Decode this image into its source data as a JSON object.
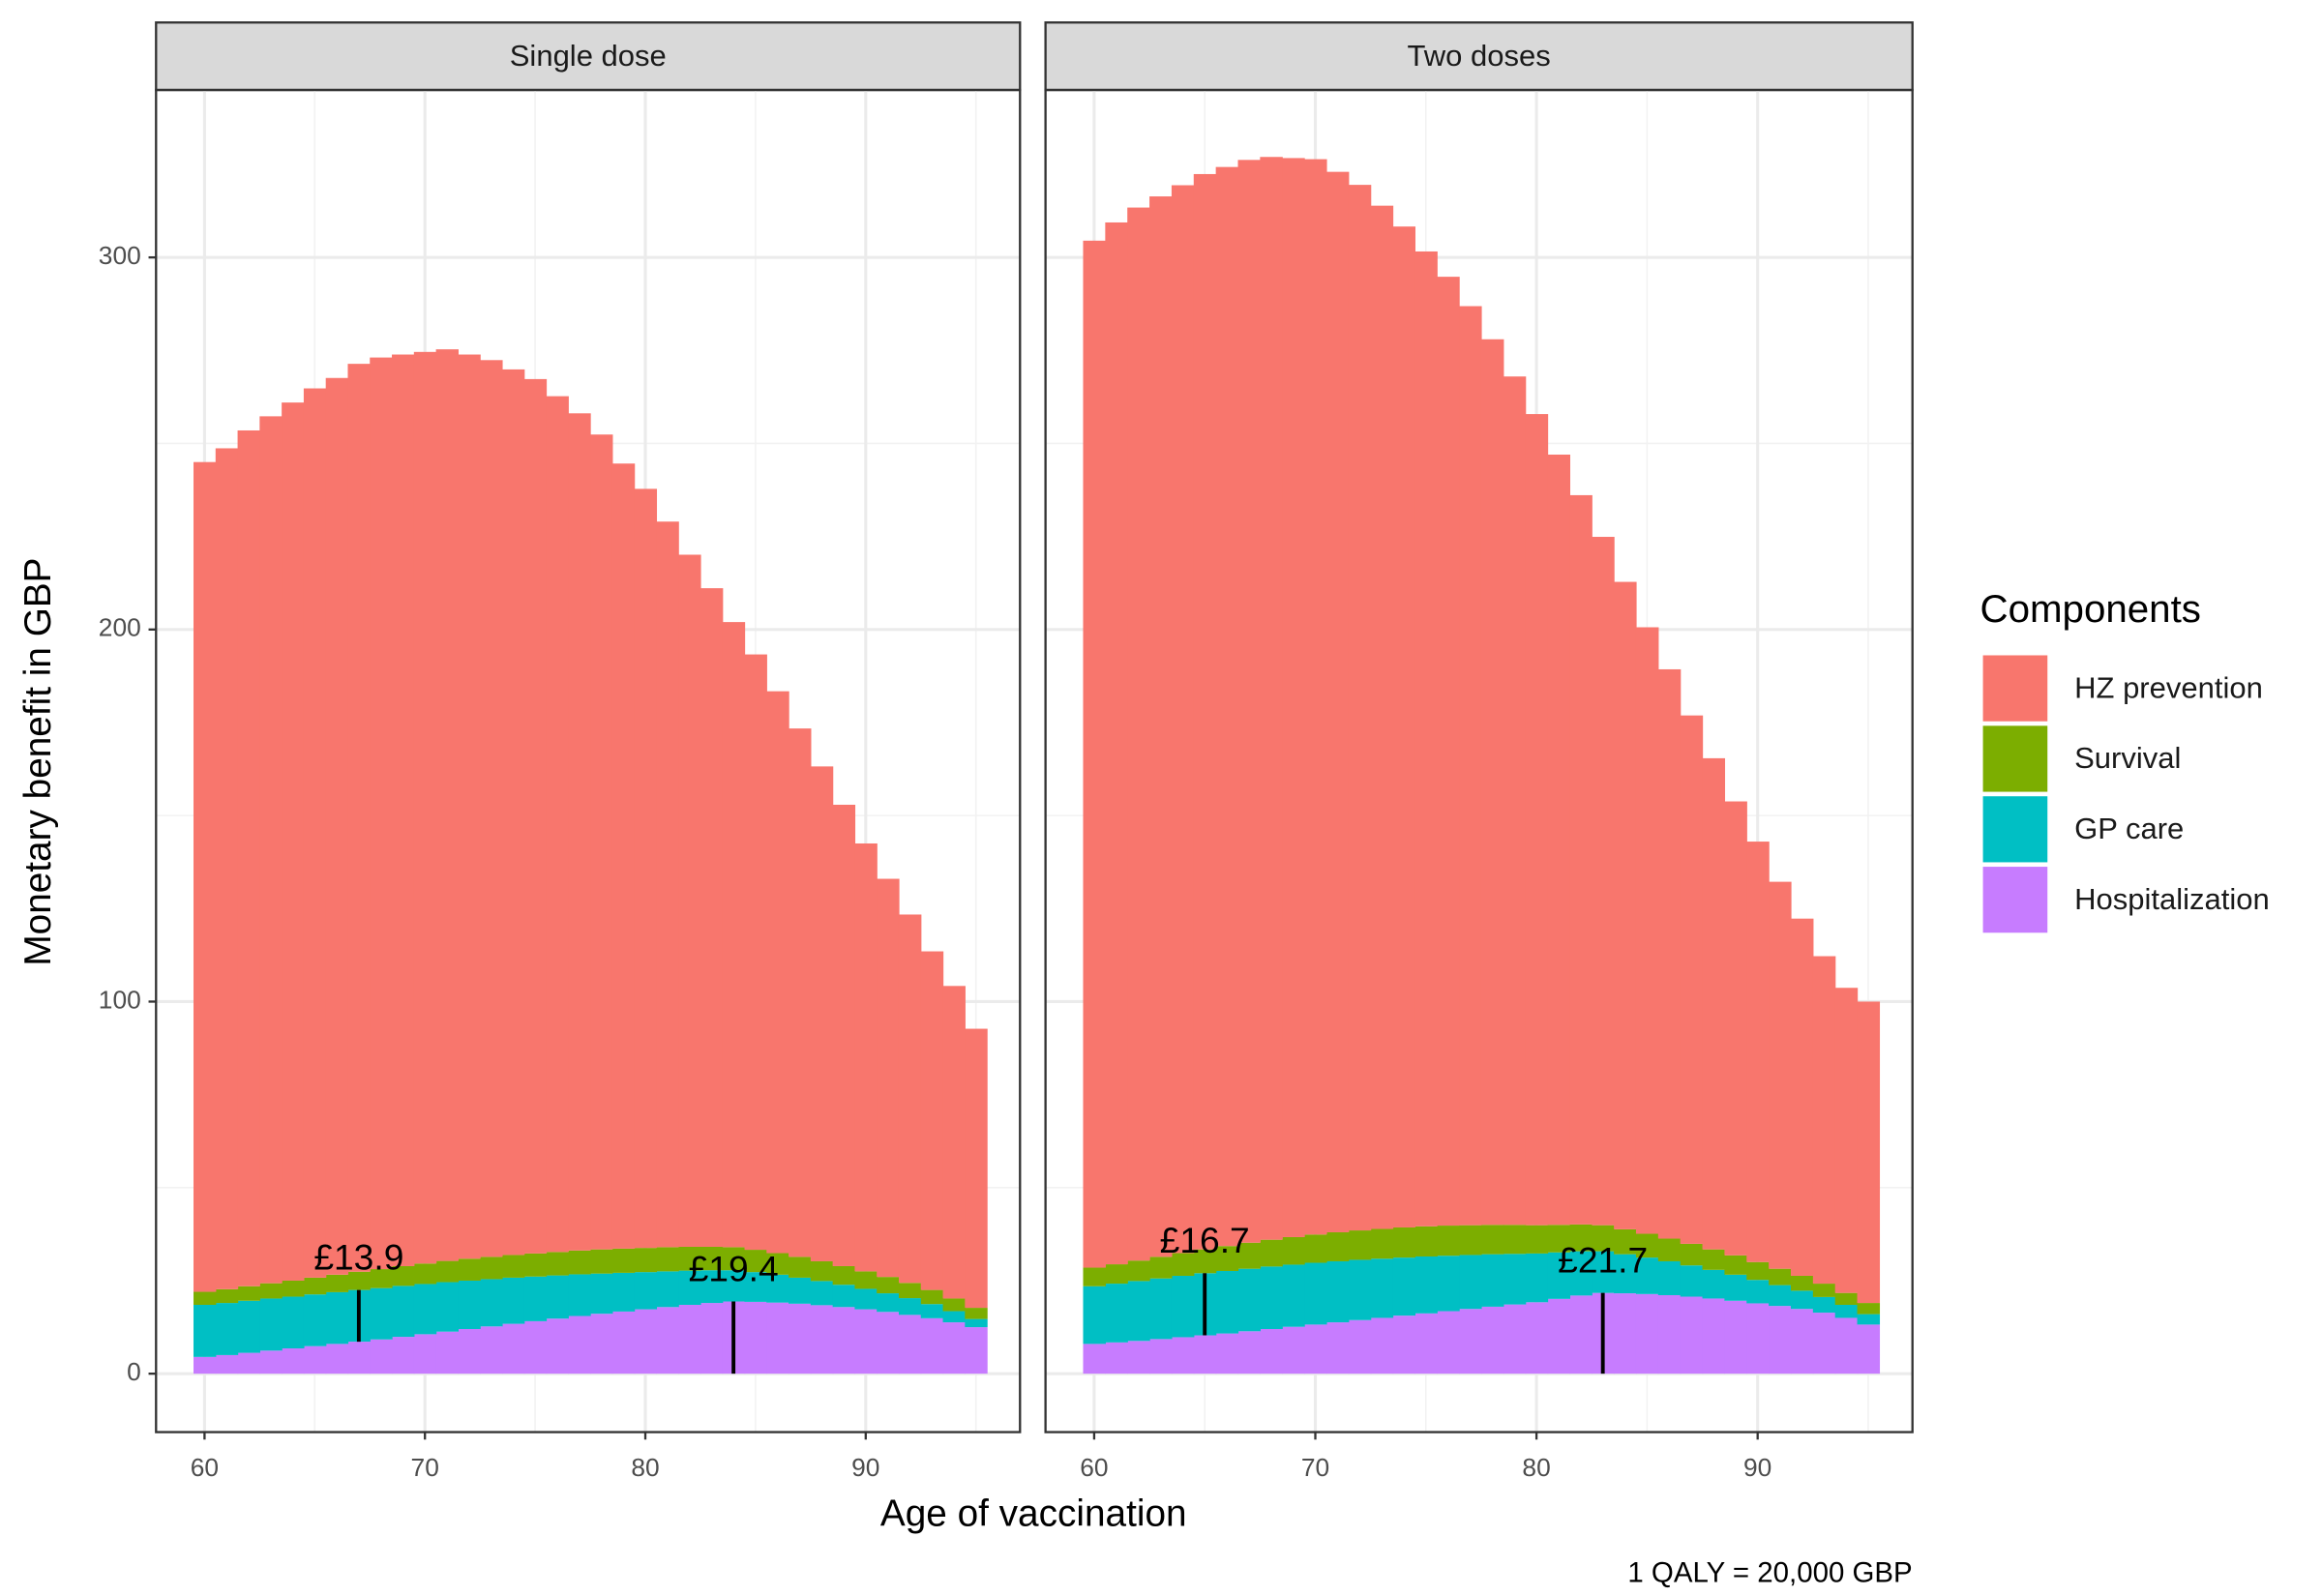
{
  "chart_data": {
    "type": "bar",
    "stacked": true,
    "x_label": "Age of vaccination",
    "y_label": "Monetary benefit in GBP",
    "caption": "1 QALY = 20,000 GBP",
    "legend": {
      "title": "Components",
      "position": "right"
    },
    "x": [
      60,
      61,
      62,
      63,
      64,
      65,
      66,
      67,
      68,
      69,
      70,
      71,
      72,
      73,
      74,
      75,
      76,
      77,
      78,
      79,
      80,
      81,
      82,
      83,
      84,
      85,
      86,
      87,
      88,
      89,
      90,
      91,
      92,
      93,
      94,
      95
    ],
    "xlim": [
      57.8,
      97.0
    ],
    "xticks": [
      60,
      70,
      80,
      90
    ],
    "xminor": [
      65,
      75,
      85,
      95
    ],
    "ylim": [
      -15.7,
      345
    ],
    "yticks": [
      0,
      100,
      200,
      300
    ],
    "yminor": [
      50,
      150,
      250
    ],
    "grid": true,
    "facets": [
      {
        "title": "Single dose",
        "series": [
          {
            "name": "HZ prevention",
            "color": "#F8766D",
            "values": [
              223,
              226,
              230,
              233,
              236,
              239,
              241,
              244,
              245,
              245,
              245,
              245,
              243,
              241,
              238,
              235,
              230,
              225,
              219,
              211,
              204,
              195,
              186,
              177,
              168,
              160,
              151,
              142,
              133,
              124,
              115,
              107,
              99,
              91,
              84,
              75
            ]
          },
          {
            "name": "Survival",
            "color": "#7CAE00",
            "values": [
              3.5,
              3.7,
              3.9,
              4.1,
              4.3,
              4.5,
              4.7,
              4.9,
              5.1,
              5.3,
              5.5,
              5.7,
              5.9,
              6.0,
              6.1,
              6.2,
              6.3,
              6.4,
              6.5,
              6.5,
              6.5,
              6.5,
              6.4,
              6.3,
              6.2,
              6.0,
              5.8,
              5.6,
              5.3,
              5.0,
              4.7,
              4.4,
              4.1,
              3.8,
              3.4,
              3.0
            ]
          },
          {
            "name": "GP care",
            "color": "#00BFC4",
            "values": [
              14.0,
              14.0,
              14.0,
              14.0,
              13.9,
              13.9,
              13.9,
              13.9,
              13.8,
              13.7,
              13.5,
              13.3,
              13.0,
              12.7,
              12.4,
              12.0,
              11.6,
              11.2,
              10.8,
              10.4,
              10.0,
              9.6,
              9.2,
              8.8,
              8.4,
              8.0,
              7.5,
              7.0,
              6.5,
              6.0,
              5.5,
              5.0,
              4.5,
              3.8,
              3.0,
              2.2
            ]
          },
          {
            "name": "Hospitalization",
            "color": "#C77CFF",
            "values": [
              4.5,
              5.0,
              5.6,
              6.2,
              6.8,
              7.4,
              8.0,
              8.6,
              9.2,
              9.9,
              10.6,
              11.3,
              12.0,
              12.7,
              13.4,
              14.1,
              14.8,
              15.5,
              16.1,
              16.7,
              17.3,
              17.9,
              18.5,
              19.0,
              19.4,
              19.3,
              19.1,
              18.8,
              18.4,
              17.9,
              17.3,
              16.6,
              15.8,
              14.9,
              13.8,
              12.5
            ]
          }
        ],
        "annotations": [
          {
            "x": 67,
            "series": "GP care",
            "value": 13.9,
            "label": "£13.9"
          },
          {
            "x": 84,
            "series": "Hospitalization",
            "value": 19.4,
            "label": "£19.4"
          }
        ]
      },
      {
        "title": "Two doses",
        "series": [
          {
            "name": "HZ prevention",
            "color": "#F8766D",
            "values": [
              276,
              280,
              283,
              285,
              287,
              289,
              290,
              291,
              291,
              290,
              289,
              285,
              281,
              275,
              269,
              262,
              255,
              247,
              238,
              228,
              218,
              207,
              196,
              185,
              174,
              163,
              153,
              142,
              132,
              122,
              113,
              104,
              96,
              88,
              82,
              81
            ]
          },
          {
            "name": "Survival",
            "color": "#7CAE00",
            "values": [
              5.0,
              5.2,
              5.5,
              5.8,
              6.1,
              6.4,
              6.7,
              7.0,
              7.2,
              7.4,
              7.6,
              7.8,
              7.9,
              8.0,
              8.1,
              8.1,
              8.1,
              8.0,
              7.9,
              7.8,
              7.6,
              7.4,
              7.2,
              7.0,
              6.7,
              6.4,
              6.1,
              5.8,
              5.5,
              5.2,
              4.8,
              4.4,
              4.0,
              3.6,
              3.2,
              3.0
            ]
          },
          {
            "name": "GP care",
            "color": "#00BFC4",
            "values": [
              15.5,
              15.8,
              16.1,
              16.3,
              16.5,
              16.7,
              16.8,
              16.8,
              16.8,
              16.7,
              16.6,
              16.4,
              16.2,
              15.9,
              15.6,
              15.3,
              14.9,
              14.5,
              14.1,
              13.6,
              13.1,
              12.5,
              11.9,
              11.2,
              10.5,
              9.8,
              9.1,
              8.4,
              7.7,
              7.0,
              6.3,
              5.6,
              4.9,
              4.2,
              3.5,
              2.8
            ]
          },
          {
            "name": "Hospitalization",
            "color": "#C77CFF",
            "values": [
              8.0,
              8.4,
              8.8,
              9.3,
              9.8,
              10.3,
              10.8,
              11.4,
              12.0,
              12.6,
              13.2,
              13.8,
              14.4,
              15.0,
              15.6,
              16.2,
              16.8,
              17.4,
              18.0,
              18.6,
              19.2,
              20.1,
              21.0,
              21.7,
              21.6,
              21.4,
              21.1,
              20.7,
              20.2,
              19.6,
              18.9,
              18.2,
              17.4,
              16.4,
              15.0,
              13.2
            ]
          }
        ],
        "annotations": [
          {
            "x": 65,
            "series": "GP care",
            "value": 16.7,
            "label": "£16.7"
          },
          {
            "x": 83,
            "series": "Hospitalization",
            "value": 21.7,
            "label": "£21.7"
          }
        ]
      }
    ]
  }
}
